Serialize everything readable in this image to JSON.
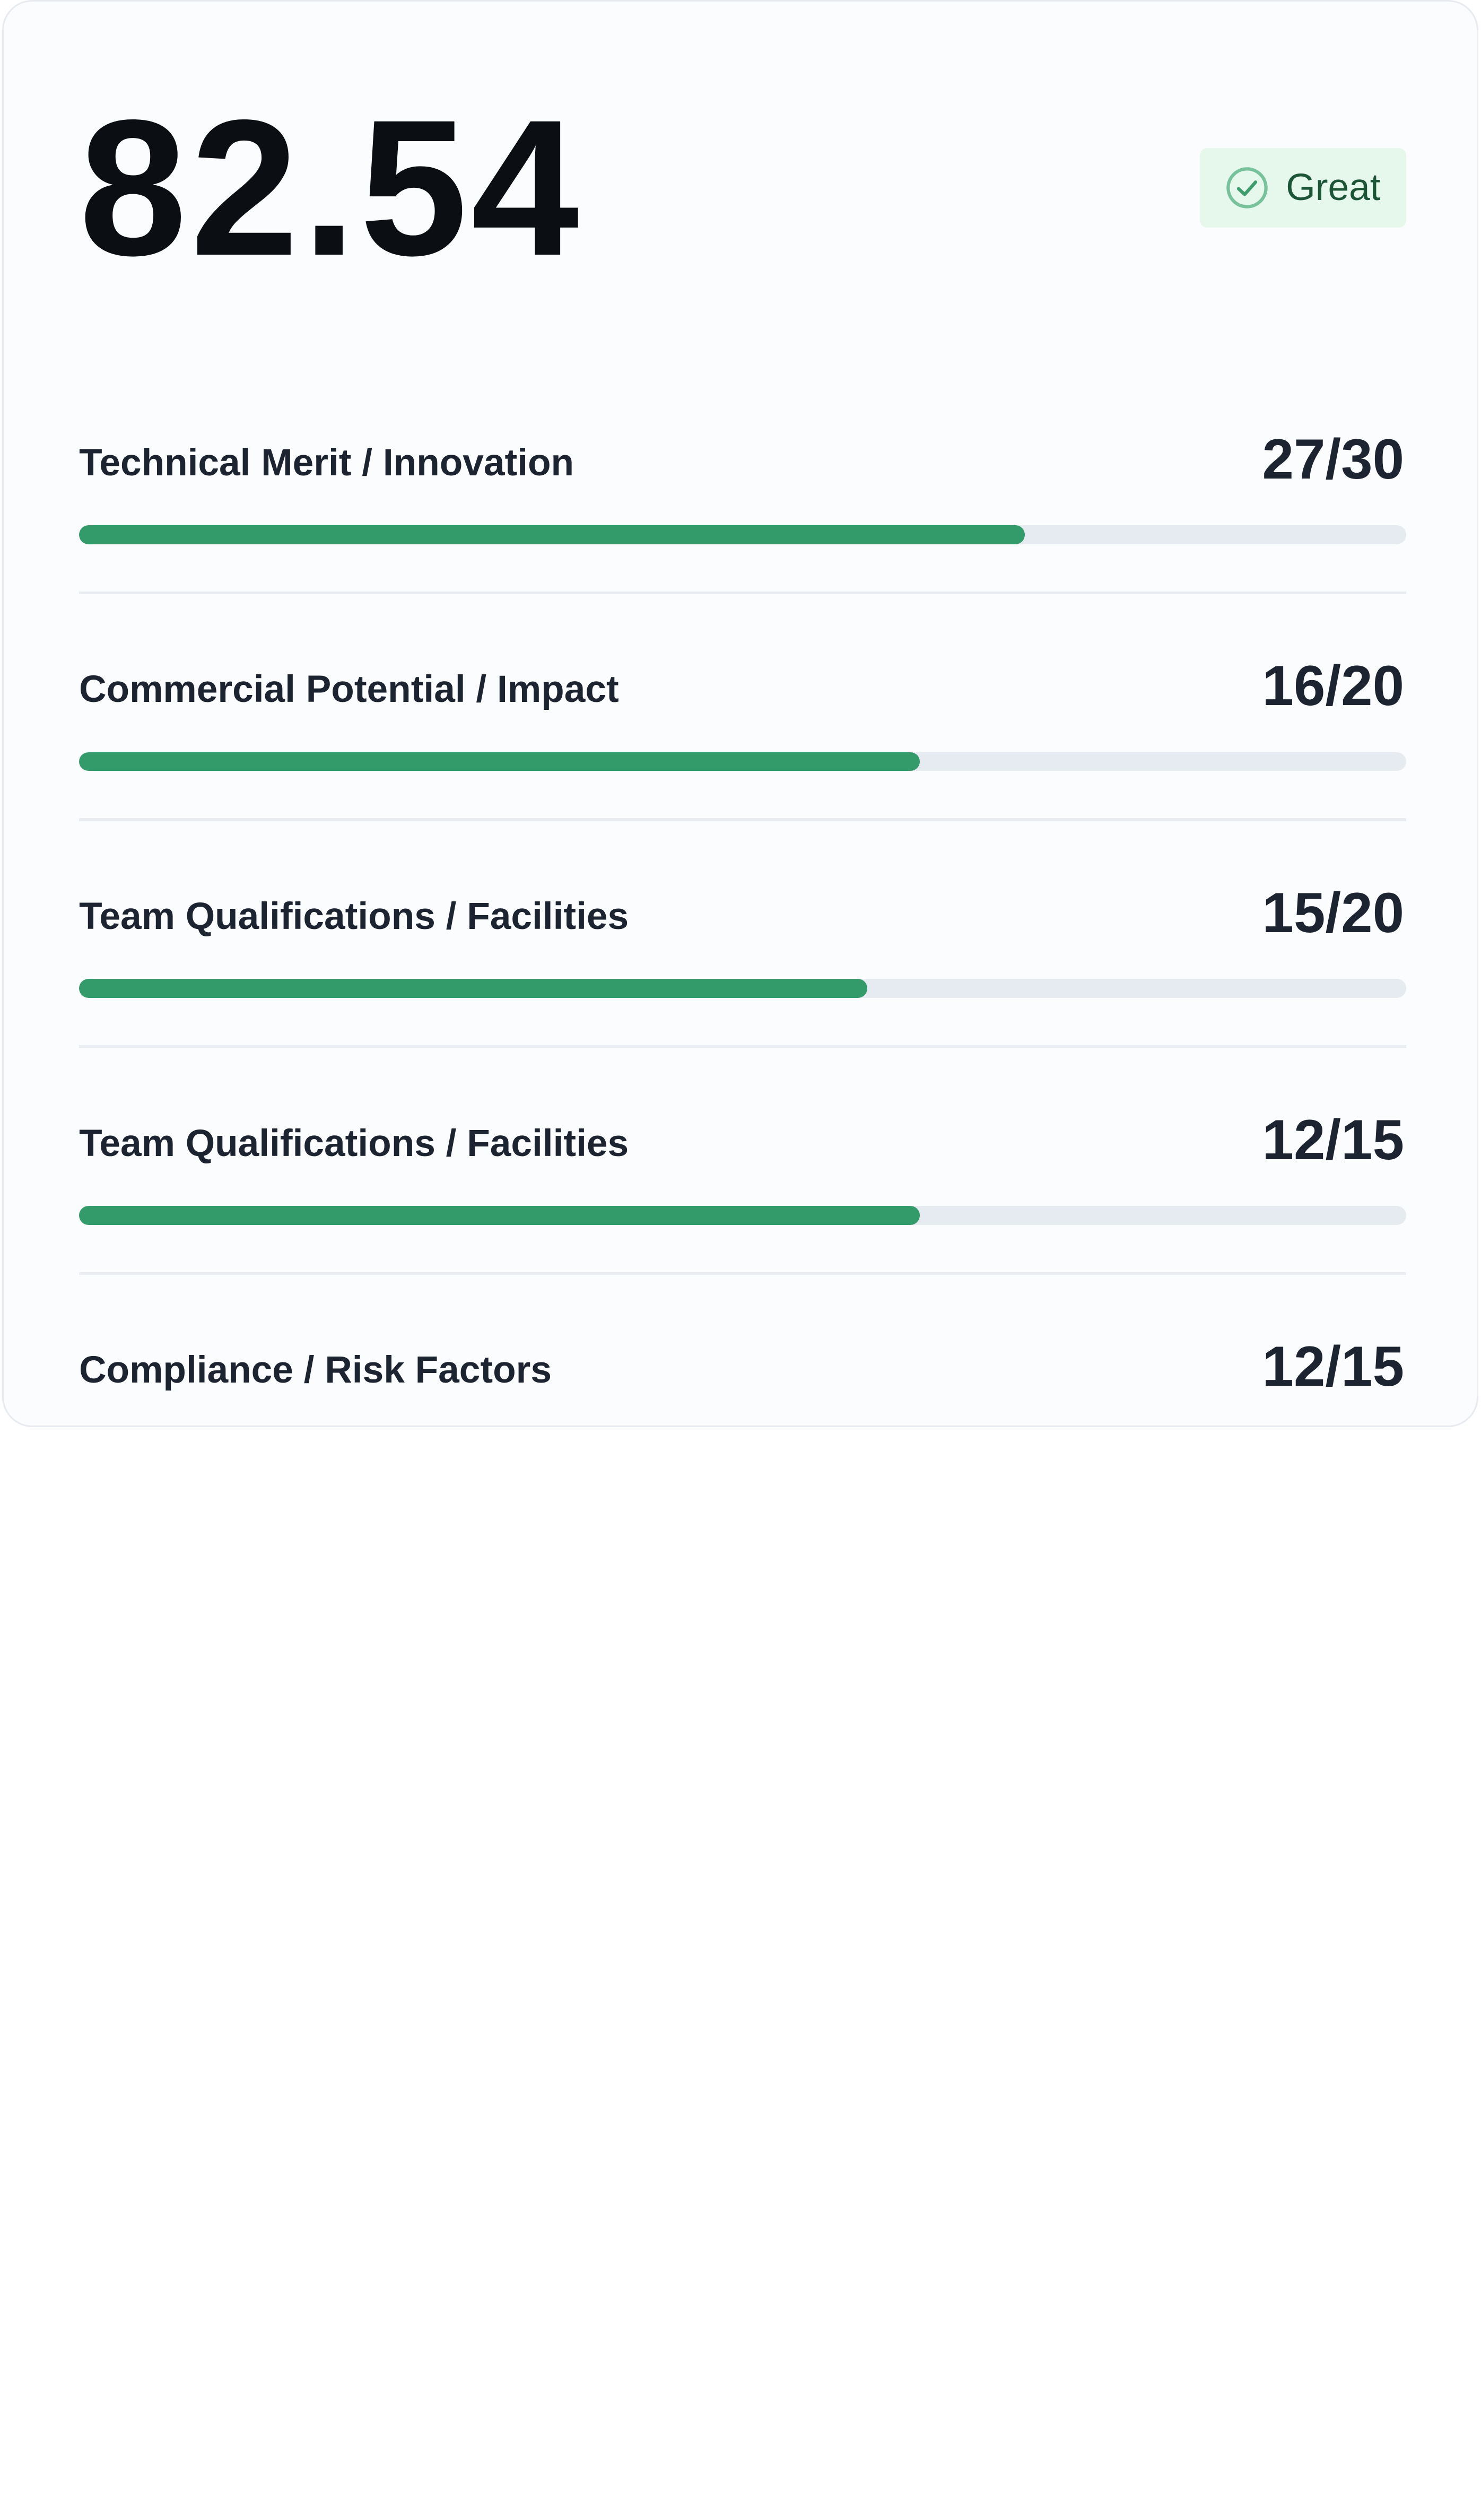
{
  "score": {
    "value": "82.54",
    "badge": {
      "label": "Great",
      "icon": "check-circle-icon",
      "background": "#e6f7ec",
      "color": "#1d5637"
    }
  },
  "colors": {
    "fill": "#339a6a",
    "track": "#e6ebf1",
    "text": "#1c2331"
  },
  "criteria": [
    {
      "name": "Technical Merit / Innovation",
      "score_text": "27/30",
      "score": 27,
      "max": 30
    },
    {
      "name": "Commercial Potential / Impact",
      "score_text": "16/20",
      "score": 16,
      "max": 20
    },
    {
      "name": "Team Qualifications / Facilities",
      "score_text": "15/20",
      "score": 15,
      "max": 20
    },
    {
      "name": "Team Qualifications / Facilities",
      "score_text": "12/15",
      "score": 12,
      "max": 15
    },
    {
      "name": "Compliance / Risk Factors",
      "score_text": "12/15",
      "score": 12,
      "max": 15
    }
  ]
}
